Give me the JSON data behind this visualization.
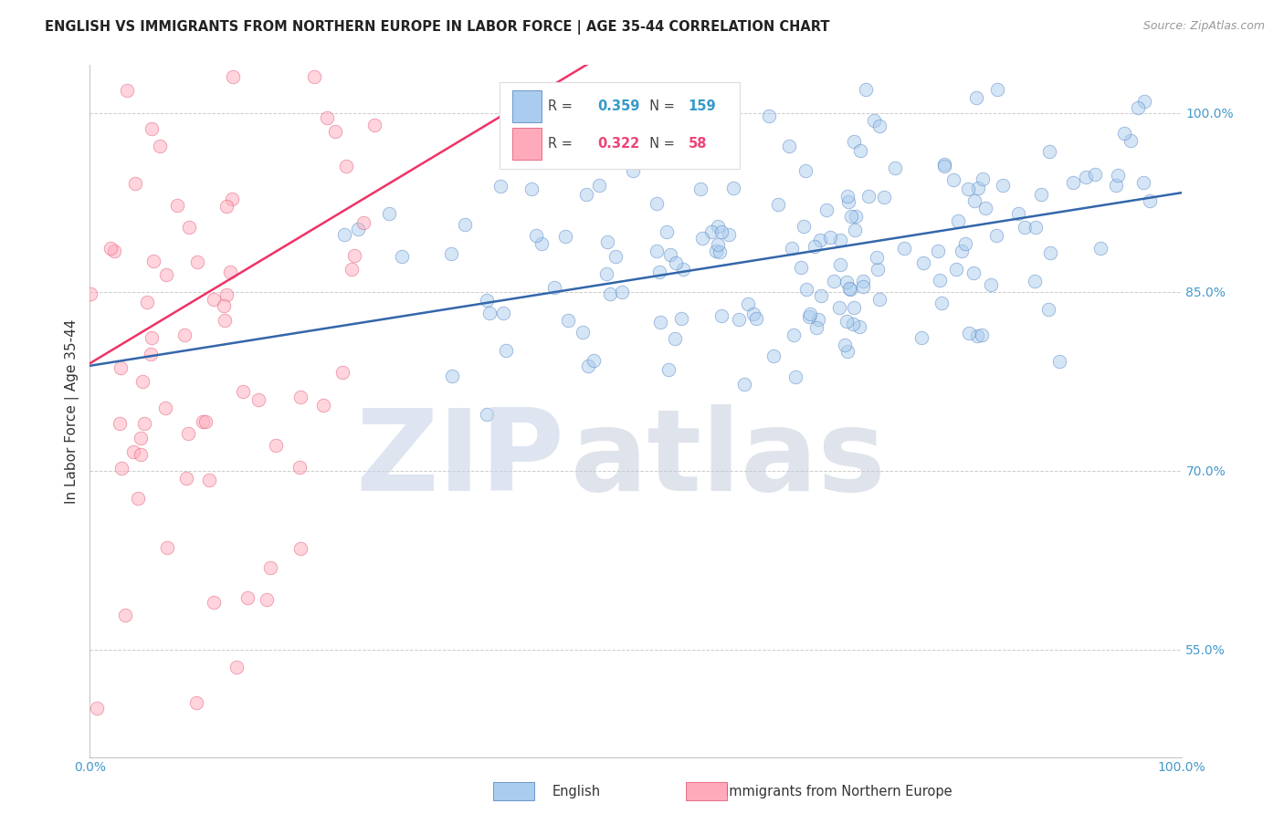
{
  "title": "ENGLISH VS IMMIGRANTS FROM NORTHERN EUROPE IN LABOR FORCE | AGE 35-44 CORRELATION CHART",
  "source_text": "Source: ZipAtlas.com",
  "ylabel": "In Labor Force | Age 35-44",
  "xlim": [
    0.0,
    1.0
  ],
  "ylim": [
    0.46,
    1.04
  ],
  "ytick_positions": [
    0.55,
    0.7,
    0.85,
    1.0
  ],
  "ytick_labels": [
    "55.0%",
    "70.0%",
    "85.0%",
    "100.0%"
  ],
  "xtick_positions": [
    0.0,
    1.0
  ],
  "xtick_labels": [
    "0.0%",
    "100.0%"
  ],
  "english_R": 0.359,
  "english_N": 159,
  "immigrant_R": 0.322,
  "immigrant_N": 58,
  "english_color": "#aaccee",
  "english_edge_color": "#4477bb",
  "immigrant_color": "#ffaabb",
  "immigrant_edge_color": "#dd4466",
  "english_line_color": "#3366aa",
  "immigrant_line_color": "#ee3366",
  "background_color": "#ffffff",
  "grid_color": "#cccccc",
  "watermark_zip_color": "#c8d4e8",
  "watermark_atlas_color": "#c0c8d8",
  "legend_border_color": "#dddddd",
  "legend_R_color": "#3399cc",
  "legend_N_color": "#3399cc",
  "legend_R_imm_color": "#ee4477",
  "legend_N_imm_color": "#ee4477",
  "ytick_color": "#4499cc",
  "xtick_color": "#4499cc",
  "dot_size": 110,
  "dot_alpha": 0.5,
  "line_width": 1.8,
  "title_fontsize": 10.5,
  "source_fontsize": 9,
  "tick_fontsize": 10,
  "ylabel_fontsize": 11
}
